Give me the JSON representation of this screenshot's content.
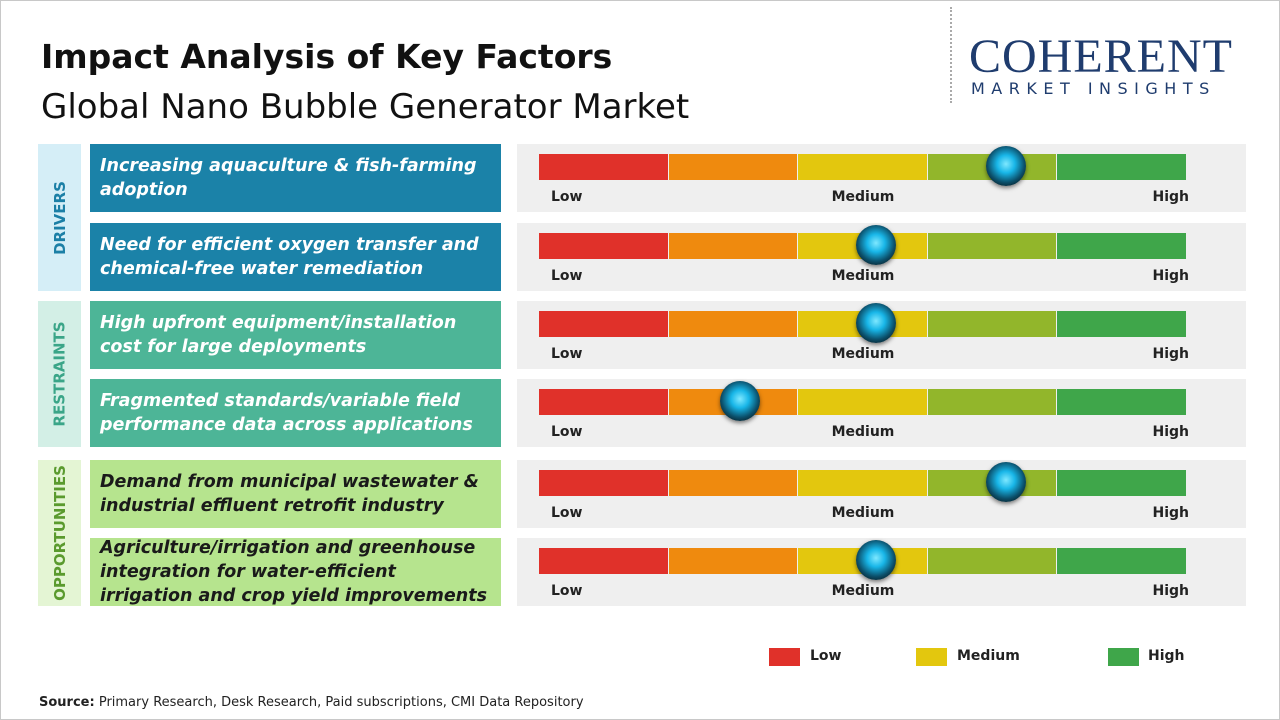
{
  "header": {
    "title": "Impact Analysis of Key Factors",
    "subtitle": "Global Nano Bubble Generator Market"
  },
  "logo": {
    "name": "COHERENT",
    "tagline": "MARKET INSIGHTS"
  },
  "scale": {
    "range": [
      0,
      100
    ],
    "labels": [
      "Low",
      "Medium",
      "High"
    ]
  },
  "groups": [
    {
      "label": "DRIVERS",
      "factors": [
        {
          "text": "Increasing aquaculture & fish-farming adoption",
          "impact": 72
        },
        {
          "text": "Need for efficient oxygen transfer and chemical-free water remediation",
          "impact": 52
        }
      ]
    },
    {
      "label": "RESTRAINTS",
      "factors": [
        {
          "text": "High upfront equipment/installation cost for large deployments",
          "impact": 52
        },
        {
          "text": "Fragmented standards/variable field performance data across applications",
          "impact": 31
        }
      ]
    },
    {
      "label": "OPPORTUNITIES",
      "factors": [
        {
          "text": "Demand from municipal wastewater & industrial effluent retrofit industry",
          "impact": 72
        },
        {
          "text": "Agriculture/irrigation and greenhouse integration for water-efficient irrigation and crop yield improvements",
          "impact": 52
        }
      ]
    }
  ],
  "legend": [
    {
      "label": "Low",
      "color": "#e0312a"
    },
    {
      "label": "Medium",
      "color": "#e3c70e"
    },
    {
      "label": "High",
      "color": "#3fa64a"
    }
  ],
  "source": {
    "label": "Source:",
    "text": "Primary Research, Desk Research, Paid subscriptions, CMI Data Repository"
  }
}
